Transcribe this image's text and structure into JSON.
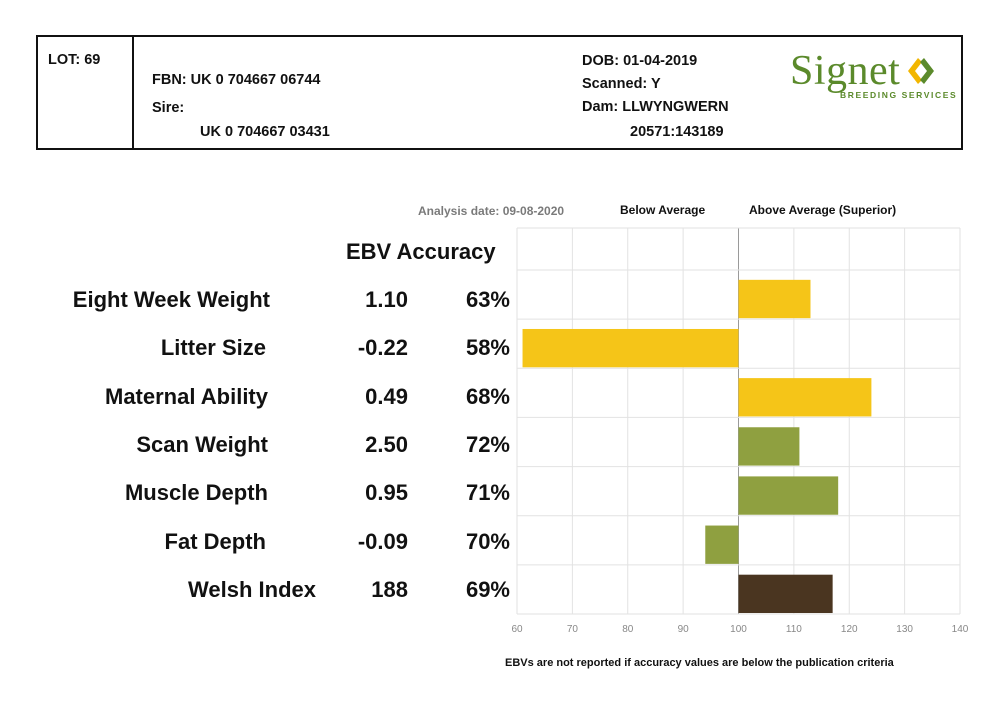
{
  "header": {
    "lot": "LOT: 69",
    "fbn": "FBN: UK 0 704667 06744",
    "sire_label": "Sire:",
    "sire_id": "UK 0 704667 03431",
    "dob": "DOB: 01-04-2019",
    "scanned": "Scanned: Y",
    "dam_label": "Dam: LLWYNGWERN",
    "dam_id": "20571:143189"
  },
  "logo": {
    "word": "Signet",
    "subtitle": "BREEDING SERVICES",
    "colors": {
      "green": "#5b8a2b",
      "gold": "#f2b600"
    }
  },
  "labels": {
    "analysis_date": "Analysis date: 09-08-2020",
    "below_average": "Below Average",
    "above_average": "Above Average (Superior)",
    "ebv_accuracy_header": "EBV Accuracy",
    "footnote": "EBVs are not reported if accuracy values are below the publication criteria"
  },
  "chart_data": {
    "type": "bar",
    "orientation": "horizontal",
    "baseline": 100,
    "xlim": [
      60,
      140
    ],
    "xticks": [
      60,
      70,
      80,
      90,
      100,
      110,
      120,
      130,
      140
    ],
    "grid": true,
    "categories": [
      "Eight Week Weight",
      "Litter Size",
      "Maternal Ability",
      "Scan Weight",
      "Muscle Depth",
      "Fat Depth",
      "Welsh Index"
    ],
    "ebv": [
      "1.10",
      "-0.22",
      "0.49",
      "2.50",
      "0.95",
      "-0.09",
      "188"
    ],
    "accuracy": [
      "63%",
      "58%",
      "68%",
      "72%",
      "71%",
      "70%",
      "69%"
    ],
    "values": [
      113,
      61,
      124,
      111,
      118,
      94,
      117
    ],
    "colors": [
      "#f5c518",
      "#f5c518",
      "#f5c518",
      "#8fa040",
      "#8fa040",
      "#8fa040",
      "#4a3520"
    ]
  }
}
